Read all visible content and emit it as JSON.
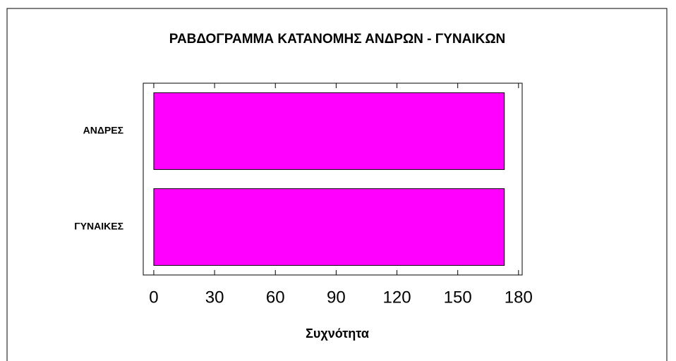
{
  "chart_data": {
    "type": "bar",
    "orientation": "horizontal",
    "title": "ΡΑΒΔΟΓΡΑΜΜΑ ΚΑΤΑΝΟΜΗΣ ΑΝΔΡΩΝ - ΓΥΝΑΙΚΩΝ",
    "x_label": "Συχνότητα",
    "categories": [
      "ΑΝΔΡΕΣ",
      "ΓΥΝΑΙΚΕΣ"
    ],
    "values": [
      173,
      173
    ],
    "color": "#ff00ff",
    "xlim": [
      -5.2,
      181.8
    ],
    "xticks": [
      0,
      30,
      60,
      90,
      120,
      150,
      180
    ],
    "grid": false
  }
}
